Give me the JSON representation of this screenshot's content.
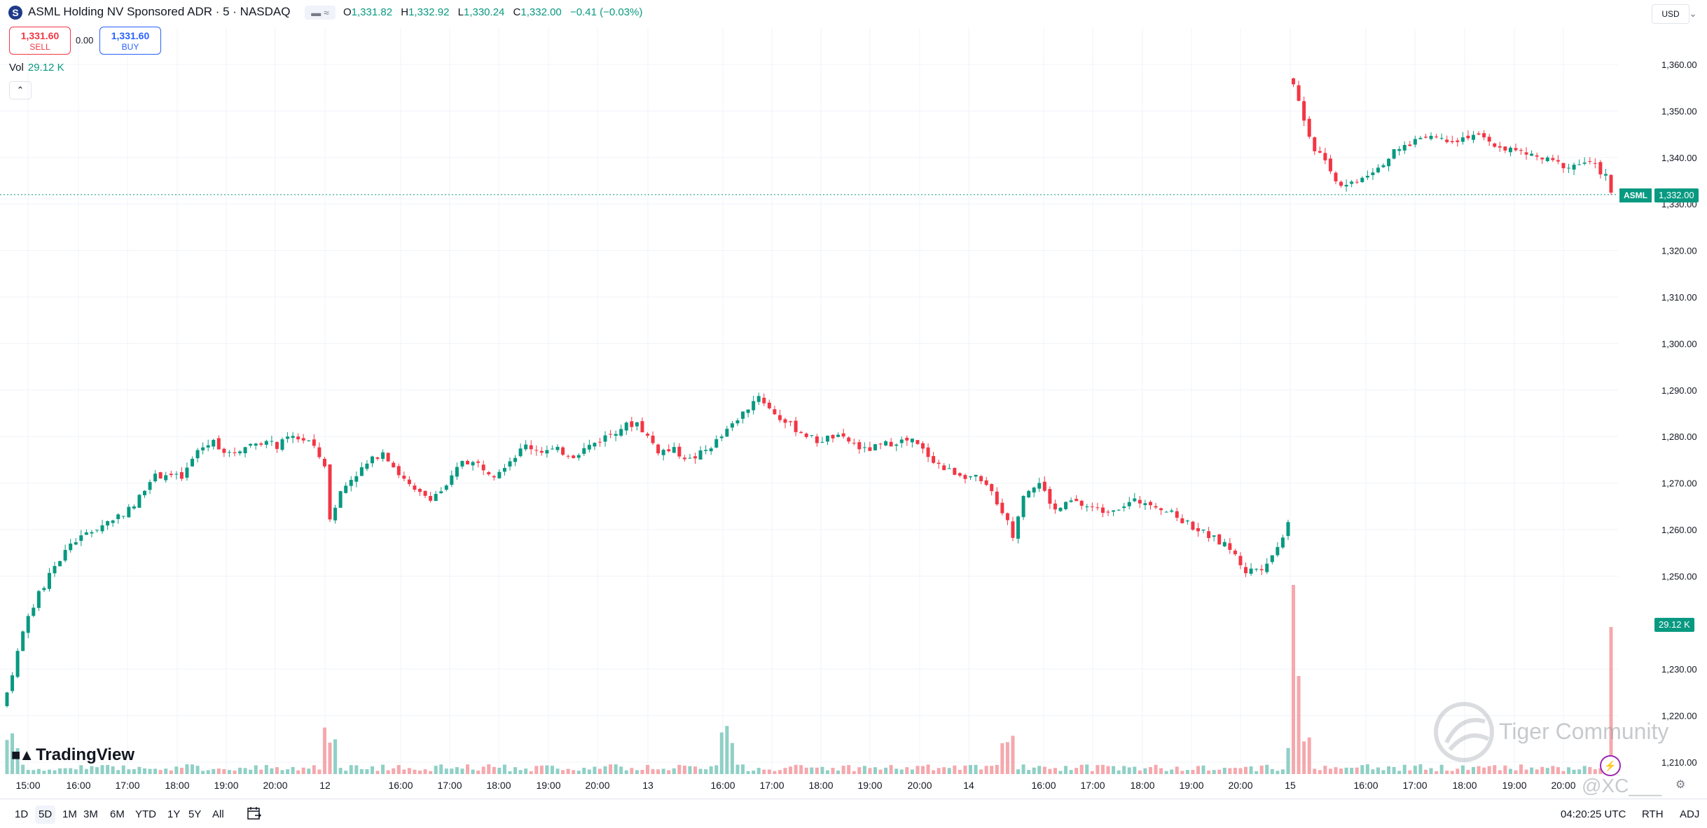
{
  "header": {
    "logo_letter": "S",
    "title": "ASML Holding NV Sponsored ADR · 5 · NASDAQ",
    "flag": "▬ ≈",
    "ohlc": {
      "o_label": "O",
      "o": "1,331.82",
      "h_label": "H",
      "h": "1,332.92",
      "l_label": "L",
      "l": "1,330.24",
      "c_label": "C",
      "c": "1,332.00",
      "change": "−0.41 (−0.03%)"
    },
    "currency": "USD",
    "menu_icon": "chevron-down-icon"
  },
  "trade": {
    "sell_price": "1,331.60",
    "sell_label": "SELL",
    "spread": "0.00",
    "buy_price": "1,331.60",
    "buy_label": "BUY"
  },
  "volume_legend": {
    "label": "Vol",
    "value": "29.12 K"
  },
  "price_tags": {
    "symbol": "ASML",
    "last": "1,332.00",
    "volume": "29.12 K"
  },
  "logo_text": "TradingView",
  "watermark": {
    "text": "Tiger Community",
    "handle": "@XC___"
  },
  "toolbar": {
    "ranges": [
      "1D",
      "5D",
      "1M",
      "3M",
      "6M",
      "YTD",
      "1Y",
      "5Y",
      "All"
    ],
    "active_range": "5D",
    "clock": "04:20:25 UTC",
    "rth": "RTH",
    "adj": "ADJ"
  },
  "colors": {
    "up": "#089981",
    "down": "#f23645",
    "up_vol": "#8fd0c6",
    "down_vol": "#f5a8ad",
    "grid": "#f0f3fa"
  },
  "chart_data": {
    "type": "candlestick",
    "y_axis": {
      "ticks": [
        1360,
        1350,
        1340,
        1330,
        1320,
        1310,
        1300,
        1290,
        1280,
        1270,
        1260,
        1250,
        1230,
        1220,
        1210
      ],
      "tick_labels": [
        "1,360.00",
        "1,350.00",
        "1,340.00",
        "1,330.00",
        "1,320.00",
        "1,310.00",
        "1,300.00",
        "1,290.00",
        "1,280.00",
        "1,270.00",
        "1,260.00",
        "1,250.00",
        "1,230.00",
        "1,220.00",
        "1,210.00"
      ],
      "range": [
        1206,
        1364
      ]
    },
    "x_axis": {
      "labels": [
        "15:00",
        "16:00",
        "17:00",
        "18:00",
        "19:00",
        "20:00",
        "12",
        "16:00",
        "17:00",
        "18:00",
        "19:00",
        "20:00",
        "13",
        "16:00",
        "17:00",
        "18:00",
        "19:00",
        "20:00",
        "14",
        "16:00",
        "17:00",
        "18:00",
        "19:00",
        "20:00",
        "15",
        "16:00",
        "17:00",
        "18:00",
        "19:00",
        "20:00"
      ]
    },
    "last_price": 1332.0,
    "last_volume": "29.12 K",
    "price_path": [
      [
        0,
        1225
      ],
      [
        3,
        1238
      ],
      [
        6,
        1246
      ],
      [
        9,
        1252
      ],
      [
        12,
        1257
      ],
      [
        15,
        1259
      ],
      [
        18,
        1261
      ],
      [
        21,
        1263
      ],
      [
        24,
        1265
      ],
      [
        27,
        1271
      ],
      [
        30,
        1272
      ],
      [
        33,
        1271
      ],
      [
        36,
        1277
      ],
      [
        39,
        1279
      ],
      [
        42,
        1276
      ],
      [
        45,
        1278
      ],
      [
        48,
        1279
      ],
      [
        51,
        1278
      ],
      [
        54,
        1280
      ],
      [
        57,
        1279
      ],
      [
        60,
        1274
      ],
      [
        61,
        1262
      ],
      [
        63,
        1268
      ],
      [
        65,
        1271
      ],
      [
        68,
        1274
      ],
      [
        71,
        1277
      ],
      [
        74,
        1272
      ],
      [
        77,
        1268
      ],
      [
        80,
        1267
      ],
      [
        83,
        1269
      ],
      [
        86,
        1275
      ],
      [
        89,
        1274
      ],
      [
        92,
        1272
      ],
      [
        95,
        1275
      ],
      [
        98,
        1278
      ],
      [
        101,
        1277
      ],
      [
        104,
        1277
      ],
      [
        107,
        1276
      ],
      [
        110,
        1278
      ],
      [
        113,
        1280
      ],
      [
        116,
        1282
      ],
      [
        119,
        1283
      ],
      [
        121,
        1280
      ],
      [
        123,
        1277
      ],
      [
        126,
        1277
      ],
      [
        129,
        1275
      ],
      [
        132,
        1277
      ],
      [
        135,
        1280
      ],
      [
        136,
        1282
      ],
      [
        139,
        1285
      ],
      [
        142,
        1289
      ],
      [
        144,
        1286
      ],
      [
        147,
        1283
      ],
      [
        150,
        1281
      ],
      [
        153,
        1279
      ],
      [
        156,
        1280
      ],
      [
        159,
        1279
      ],
      [
        162,
        1277
      ],
      [
        165,
        1278
      ],
      [
        168,
        1279
      ],
      [
        171,
        1279
      ],
      [
        174,
        1276
      ],
      [
        177,
        1273
      ],
      [
        180,
        1272
      ],
      [
        183,
        1271
      ],
      [
        186,
        1268
      ],
      [
        188,
        1264
      ],
      [
        190,
        1259
      ],
      [
        192,
        1268
      ],
      [
        195,
        1270
      ],
      [
        198,
        1264
      ],
      [
        201,
        1266
      ],
      [
        204,
        1265
      ],
      [
        207,
        1264
      ],
      [
        210,
        1265
      ],
      [
        213,
        1266
      ],
      [
        216,
        1266
      ],
      [
        219,
        1264
      ],
      [
        222,
        1262
      ],
      [
        225,
        1260
      ],
      [
        228,
        1258
      ],
      [
        231,
        1256
      ],
      [
        234,
        1251
      ],
      [
        237,
        1252
      ],
      [
        240,
        1256
      ],
      [
        242,
        1262
      ],
      [
        243,
        1356
      ],
      [
        245,
        1348
      ],
      [
        247,
        1342
      ],
      [
        249,
        1340
      ],
      [
        251,
        1335
      ],
      [
        253,
        1334
      ],
      [
        256,
        1336
      ],
      [
        259,
        1338
      ],
      [
        262,
        1341
      ],
      [
        265,
        1343
      ],
      [
        268,
        1345
      ],
      [
        271,
        1344
      ],
      [
        274,
        1344
      ],
      [
        277,
        1345
      ],
      [
        280,
        1343
      ],
      [
        283,
        1342
      ],
      [
        286,
        1341
      ],
      [
        289,
        1340
      ],
      [
        292,
        1339
      ],
      [
        295,
        1338
      ],
      [
        298,
        1339
      ],
      [
        300,
        1338
      ],
      [
        302,
        1336
      ],
      [
        303,
        1332
      ]
    ],
    "volume_notes": "volume bars in lower pane; spike to about 29.12 K on last bar"
  }
}
